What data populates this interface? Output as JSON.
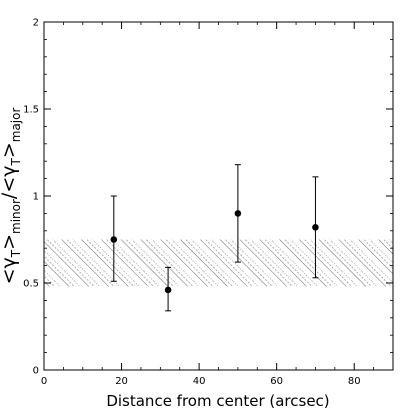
{
  "chart_data": {
    "type": "scatter",
    "title": "",
    "xlabel": "Distance from center (arcsec)",
    "ylabel": {
      "lt": "<",
      "gamma": "γ",
      "sub_t": "T",
      "gt": ">",
      "minor": "minor",
      "slash": "/",
      "major": "major"
    },
    "xlim": [
      0,
      90
    ],
    "ylim": [
      0,
      2
    ],
    "xticks": [
      0,
      20,
      40,
      60,
      80
    ],
    "xtick_labels": [
      "0",
      "20",
      "40",
      "60",
      "80"
    ],
    "yticks": [
      0,
      0.5,
      1,
      1.5,
      2
    ],
    "ytick_labels": [
      "0",
      "0.5",
      "1",
      "1.5",
      "2"
    ],
    "x_minor_step": 5,
    "y_minor_step": 0.1,
    "band": {
      "y_low": 0.48,
      "y_high": 0.75,
      "style": "hatched"
    },
    "points": [
      {
        "x": 18,
        "y": 0.75,
        "err_low": 0.51,
        "err_high": 1.0
      },
      {
        "x": 32,
        "y": 0.46,
        "err_low": 0.34,
        "err_high": 0.59
      },
      {
        "x": 50,
        "y": 0.9,
        "err_low": 0.62,
        "err_high": 1.18
      },
      {
        "x": 70,
        "y": 0.82,
        "err_low": 0.53,
        "err_high": 1.11
      }
    ],
    "grid": false,
    "colors": {
      "ink": "#000000",
      "background": "#ffffff",
      "hatch": "#555555"
    }
  }
}
